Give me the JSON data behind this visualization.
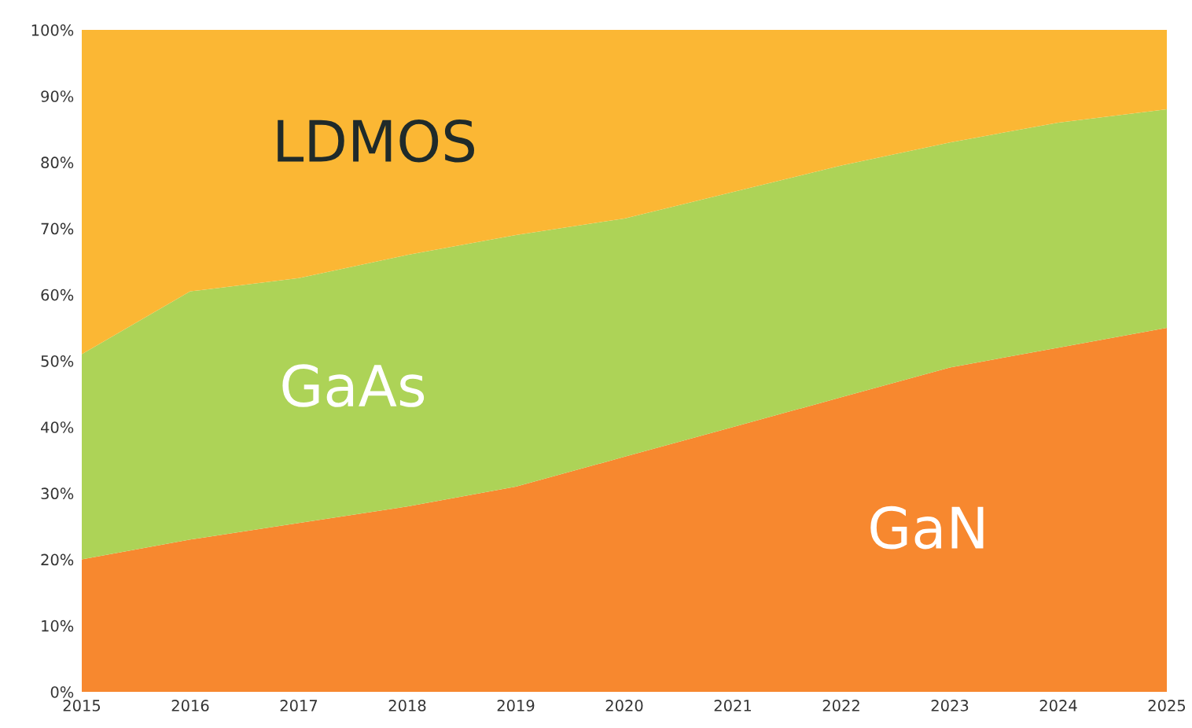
{
  "chart_data": {
    "type": "area",
    "stacked": true,
    "x": [
      2015,
      2016,
      2017,
      2018,
      2019,
      2020,
      2021,
      2022,
      2023,
      2024,
      2025
    ],
    "series": [
      {
        "name": "GaN",
        "color": "#f7882f",
        "values": [
          20,
          23,
          25.5,
          28,
          31,
          35.5,
          40,
          44.5,
          49,
          52,
          55
        ]
      },
      {
        "name": "GaAs",
        "color": "#add357",
        "values": [
          31,
          37.5,
          37,
          38,
          38,
          36,
          35.5,
          35,
          34,
          34,
          33
        ]
      },
      {
        "name": "LDMOS",
        "color": "#fbb734",
        "values": [
          49,
          39.5,
          37.5,
          34,
          31,
          28.5,
          24.5,
          20.5,
          17,
          14,
          12
        ]
      }
    ],
    "xlim": [
      2015,
      2025
    ],
    "xticks": [
      2015,
      2016,
      2017,
      2018,
      2019,
      2020,
      2021,
      2022,
      2023,
      2024,
      2025
    ],
    "ylim": [
      0,
      100
    ],
    "yticks": [
      {
        "value": 0,
        "label": "0%"
      },
      {
        "value": 10,
        "label": "10%"
      },
      {
        "value": 20,
        "label": "20%"
      },
      {
        "value": 30,
        "label": "30%"
      },
      {
        "value": 40,
        "label": "40%"
      },
      {
        "value": 50,
        "label": "50%"
      },
      {
        "value": 60,
        "label": "60%"
      },
      {
        "value": 70,
        "label": "70%"
      },
      {
        "value": 80,
        "label": "80%"
      },
      {
        "value": 90,
        "label": "90%"
      },
      {
        "value": 100,
        "label": "100%"
      }
    ],
    "grid": false,
    "legend": false
  }
}
